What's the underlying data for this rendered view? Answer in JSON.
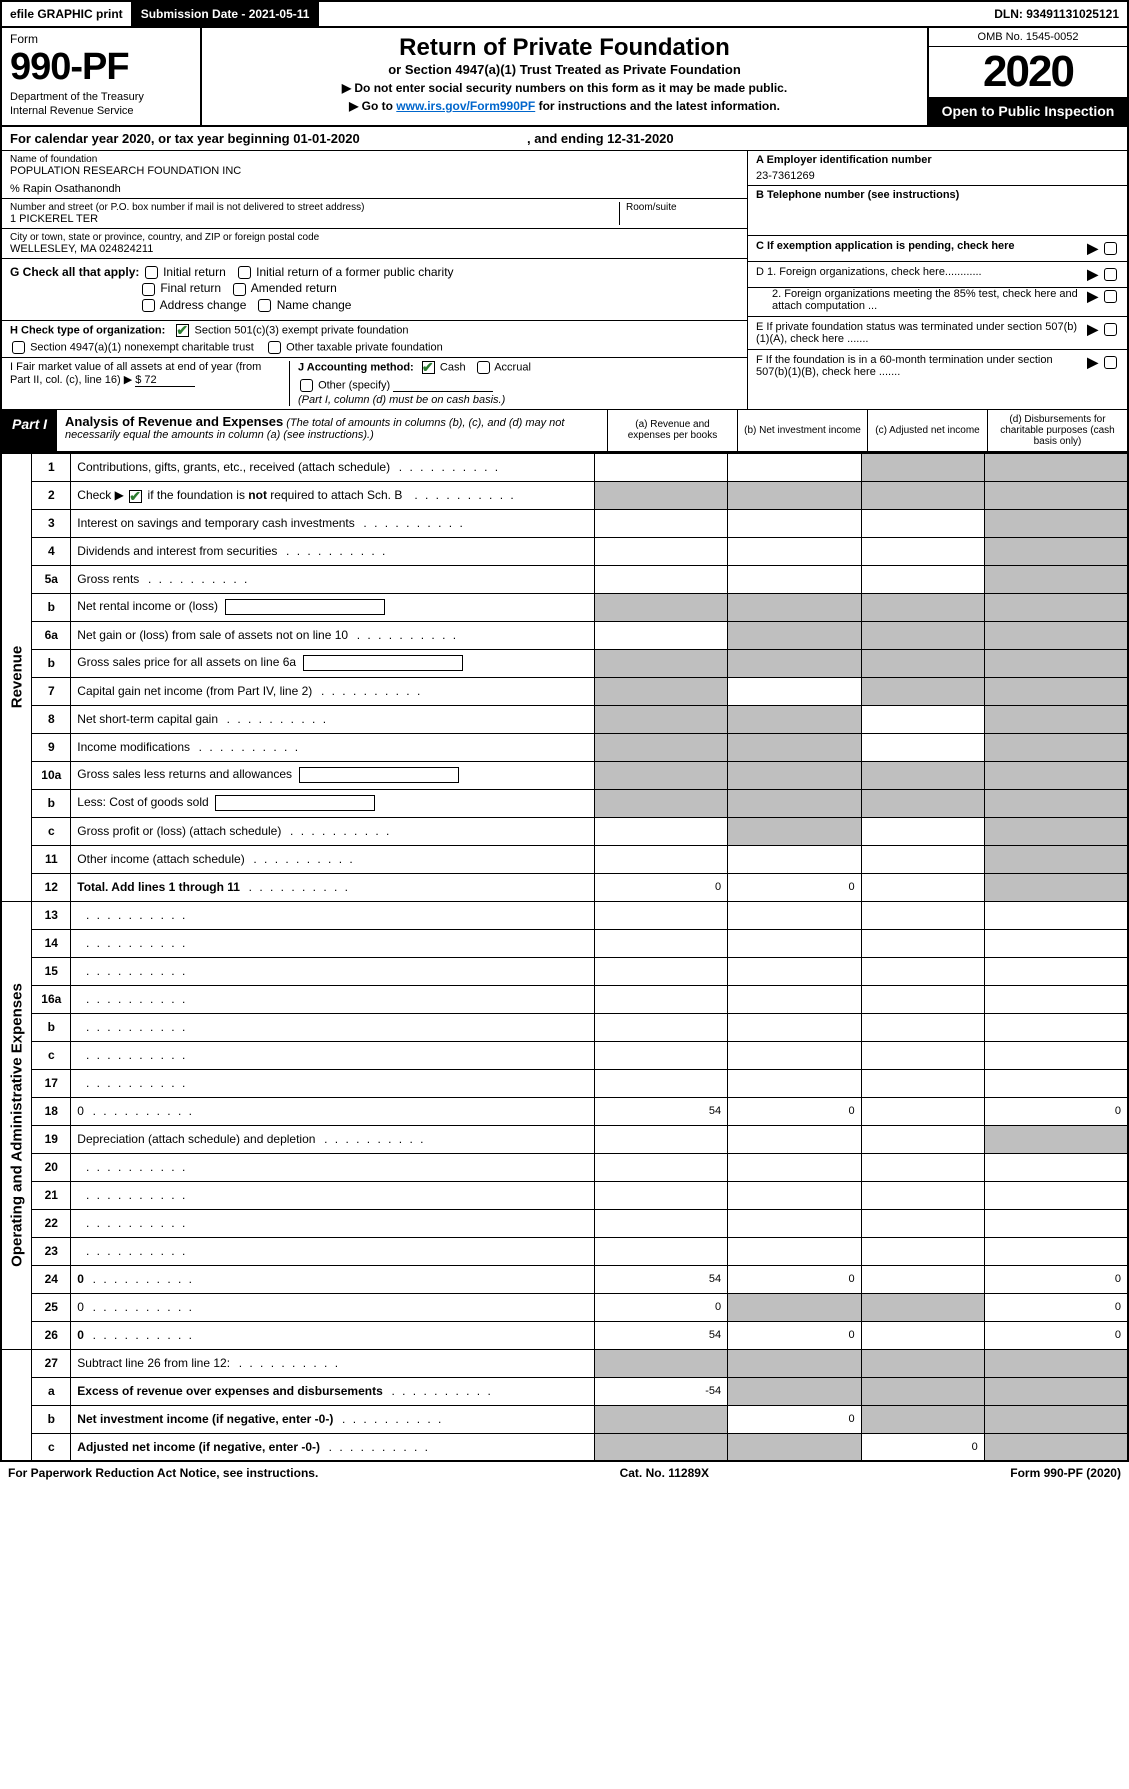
{
  "topbar": {
    "efile": "efile GRAPHIC print",
    "submission": "Submission Date - 2021-05-11",
    "dln": "DLN: 93491131025121"
  },
  "header": {
    "form": "Form",
    "formnum": "990-PF",
    "dept": "Department of the Treasury",
    "irs": "Internal Revenue Service",
    "title": "Return of Private Foundation",
    "subtitle": "or Section 4947(a)(1) Trust Treated as Private Foundation",
    "inst1": "▶ Do not enter social security numbers on this form as it may be made public.",
    "inst2a": "▶ Go to ",
    "inst2link": "www.irs.gov/Form990PF",
    "inst2b": " for instructions and the latest information.",
    "omb": "OMB No. 1545-0052",
    "year": "2020",
    "openpublic": "Open to Public Inspection"
  },
  "calendar": {
    "text1": "For calendar year 2020, or tax year beginning 01-01-2020",
    "text2": ", and ending 12-31-2020"
  },
  "info": {
    "name_label": "Name of foundation",
    "name": "POPULATION RESEARCH FOUNDATION INC",
    "care_of": "% Rapin Osathanondh",
    "addr_label": "Number and street (or P.O. box number if mail is not delivered to street address)",
    "addr": "1 PICKEREL TER",
    "room_label": "Room/suite",
    "city_label": "City or town, state or province, country, and ZIP or foreign postal code",
    "city": "WELLESLEY, MA  024824211",
    "ein_label": "A Employer identification number",
    "ein": "23-7361269",
    "tel_label": "B Telephone number (see instructions)",
    "c_label": "C If exemption application is pending, check here",
    "d1": "D 1. Foreign organizations, check here............",
    "d2": "2. Foreign organizations meeting the 85% test, check here and attach computation ...",
    "e_label": "E  If private foundation status was terminated under section 507(b)(1)(A), check here .......",
    "f_label": "F  If the foundation is in a 60-month termination under section 507(b)(1)(B), check here .......",
    "g_label": "G Check all that apply:",
    "g_opts": [
      "Initial return",
      "Initial return of a former public charity",
      "Final return",
      "Amended return",
      "Address change",
      "Name change"
    ],
    "h_label": "H Check type of organization:",
    "h1": "Section 501(c)(3) exempt private foundation",
    "h2": "Section 4947(a)(1) nonexempt charitable trust",
    "h3": "Other taxable private foundation",
    "i_label": "I Fair market value of all assets at end of year (from Part II, col. (c), line 16) ▶",
    "i_val": "$  72",
    "j_label": "J Accounting method:",
    "j_cash": "Cash",
    "j_accrual": "Accrual",
    "j_other": "Other (specify)",
    "j_note": "(Part I, column (d) must be on cash basis.)"
  },
  "part1": {
    "label": "Part I",
    "title": "Analysis of Revenue and Expenses",
    "note": "(The total of amounts in columns (b), (c), and (d) may not necessarily equal the amounts in column (a) (see instructions).)",
    "col_a": "(a)   Revenue and expenses per books",
    "col_b": "(b)  Net investment income",
    "col_c": "(c)  Adjusted net income",
    "col_d": "(d)  Disbursements for charitable purposes (cash basis only)"
  },
  "sides": {
    "revenue": "Revenue",
    "expenses": "Operating and Administrative Expenses"
  },
  "rows": [
    {
      "n": "1",
      "d": "Contributions, gifts, grants, etc., received (attach schedule)",
      "a": "",
      "b": "",
      "c": "",
      "cs": true,
      "ds": true
    },
    {
      "n": "2",
      "d": "Check ▶ ✔ if the foundation is not required to attach Sch. B",
      "special": "check2",
      "a": "",
      "b": "",
      "c": "",
      "ds": true,
      "cs": true,
      "as": true,
      "bs": true
    },
    {
      "n": "3",
      "d": "Interest on savings and temporary cash investments",
      "a": "",
      "b": "",
      "c": "",
      "ds": true
    },
    {
      "n": "4",
      "d": "Dividends and interest from securities",
      "a": "",
      "b": "",
      "c": "",
      "ds": true
    },
    {
      "n": "5a",
      "d": "Gross rents",
      "a": "",
      "b": "",
      "c": "",
      "ds": true
    },
    {
      "n": "b",
      "d": "Net rental income or (loss)",
      "inline": true,
      "as": true,
      "bs": true,
      "cs": true,
      "ds": true
    },
    {
      "n": "6a",
      "d": "Net gain or (loss) from sale of assets not on line 10",
      "a": "",
      "bs": true,
      "cs": true,
      "ds": true
    },
    {
      "n": "b",
      "d": "Gross sales price for all assets on line 6a",
      "inline": true,
      "as": true,
      "bs": true,
      "cs": true,
      "ds": true
    },
    {
      "n": "7",
      "d": "Capital gain net income (from Part IV, line 2)",
      "as": true,
      "b": "",
      "cs": true,
      "ds": true
    },
    {
      "n": "8",
      "d": "Net short-term capital gain",
      "as": true,
      "bs": true,
      "c": "",
      "ds": true
    },
    {
      "n": "9",
      "d": "Income modifications",
      "as": true,
      "bs": true,
      "c": "",
      "ds": true
    },
    {
      "n": "10a",
      "d": "Gross sales less returns and allowances",
      "inline": true,
      "as": true,
      "bs": true,
      "cs": true,
      "ds": true
    },
    {
      "n": "b",
      "d": "Less: Cost of goods sold",
      "inline": true,
      "as": true,
      "bs": true,
      "cs": true,
      "ds": true
    },
    {
      "n": "c",
      "d": "Gross profit or (loss) (attach schedule)",
      "a": "",
      "bs": true,
      "c": "",
      "ds": true
    },
    {
      "n": "11",
      "d": "Other income (attach schedule)",
      "a": "",
      "b": "",
      "c": "",
      "ds": true
    },
    {
      "n": "12",
      "d": "Total. Add lines 1 through 11",
      "bold": true,
      "a": "0",
      "b": "0",
      "c": "",
      "ds": true
    }
  ],
  "rows2": [
    {
      "n": "13",
      "d": "",
      "a": "",
      "b": "",
      "c": ""
    },
    {
      "n": "14",
      "d": "",
      "a": "",
      "b": "",
      "c": ""
    },
    {
      "n": "15",
      "d": "",
      "a": "",
      "b": "",
      "c": ""
    },
    {
      "n": "16a",
      "d": "",
      "a": "",
      "b": "",
      "c": ""
    },
    {
      "n": "b",
      "d": "",
      "a": "",
      "b": "",
      "c": ""
    },
    {
      "n": "c",
      "d": "",
      "a": "",
      "b": "",
      "c": ""
    },
    {
      "n": "17",
      "d": "",
      "a": "",
      "b": "",
      "c": ""
    },
    {
      "n": "18",
      "d": "0",
      "a": "54",
      "b": "0",
      "c": ""
    },
    {
      "n": "19",
      "d": "Depreciation (attach schedule) and depletion",
      "a": "",
      "b": "",
      "c": "",
      "ds": true
    },
    {
      "n": "20",
      "d": "",
      "a": "",
      "b": "",
      "c": ""
    },
    {
      "n": "21",
      "d": "",
      "a": "",
      "b": "",
      "c": ""
    },
    {
      "n": "22",
      "d": "",
      "a": "",
      "b": "",
      "c": ""
    },
    {
      "n": "23",
      "d": "",
      "a": "",
      "b": "",
      "c": ""
    },
    {
      "n": "24",
      "d": "0",
      "bold": true,
      "a": "54",
      "b": "0",
      "c": ""
    },
    {
      "n": "25",
      "d": "0",
      "a": "0",
      "bs": true,
      "cs": true
    },
    {
      "n": "26",
      "d": "0",
      "bold": true,
      "a": "54",
      "b": "0",
      "c": ""
    }
  ],
  "rows3": [
    {
      "n": "27",
      "d": "Subtract line 26 from line 12:",
      "as": true,
      "bs": true,
      "cs": true,
      "ds": true
    },
    {
      "n": "a",
      "d": "Excess of revenue over expenses and disbursements",
      "bold": true,
      "a": "-54",
      "bs": true,
      "cs": true,
      "ds": true
    },
    {
      "n": "b",
      "d": "Net investment income (if negative, enter -0-)",
      "bold": true,
      "as": true,
      "b": "0",
      "cs": true,
      "ds": true
    },
    {
      "n": "c",
      "d": "Adjusted net income (if negative, enter -0-)",
      "bold": true,
      "as": true,
      "bs": true,
      "c": "0",
      "ds": true
    }
  ],
  "footer": {
    "left": "For Paperwork Reduction Act Notice, see instructions.",
    "center": "Cat. No. 11289X",
    "right": "Form 990-PF (2020)"
  },
  "colors": {
    "shaded": "#bfbfbf",
    "link": "#0066cc",
    "check": "#2e7d32"
  }
}
